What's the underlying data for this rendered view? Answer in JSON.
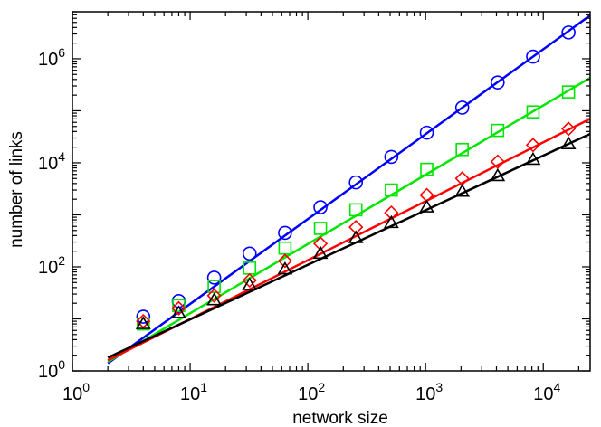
{
  "chart_data": {
    "type": "scatter",
    "title": "",
    "xlabel": "network size",
    "ylabel": "number of links",
    "xscale": "log",
    "yscale": "log",
    "xlim": [
      1,
      25000
    ],
    "ylim": [
      1,
      8000000
    ],
    "grid": false,
    "legend": "none",
    "x_ticks": [
      {
        "base": "10",
        "exp": "0",
        "value": 1
      },
      {
        "base": "10",
        "exp": "1",
        "value": 10
      },
      {
        "base": "10",
        "exp": "2",
        "value": 100
      },
      {
        "base": "10",
        "exp": "3",
        "value": 1000
      },
      {
        "base": "10",
        "exp": "4",
        "value": 10000
      }
    ],
    "y_ticks": [
      {
        "base": "10",
        "exp": "0",
        "value": 1
      },
      {
        "base": "10",
        "exp": "2",
        "value": 100
      },
      {
        "base": "10",
        "exp": "4",
        "value": 10000
      },
      {
        "base": "10",
        "exp": "6",
        "value": 1000000
      }
    ],
    "series": [
      {
        "marker": "circle",
        "color": "#0000ff",
        "points": [
          [
            4,
            11
          ],
          [
            8,
            22
          ],
          [
            16,
            62
          ],
          [
            32,
            180
          ],
          [
            64,
            450
          ],
          [
            128,
            1400
          ],
          [
            256,
            4200
          ],
          [
            512,
            13000
          ],
          [
            1024,
            38000
          ],
          [
            2048,
            115000
          ],
          [
            4096,
            350000
          ],
          [
            8192,
            1100000
          ],
          [
            16384,
            3200000
          ]
        ],
        "fit": [
          [
            2,
            1.4
          ],
          [
            25000,
            6800000
          ]
        ]
      },
      {
        "marker": "square",
        "color": "#00e600",
        "points": [
          [
            4,
            8
          ],
          [
            8,
            18
          ],
          [
            16,
            42
          ],
          [
            32,
            95
          ],
          [
            64,
            230
          ],
          [
            128,
            550
          ],
          [
            256,
            1250
          ],
          [
            512,
            3000
          ],
          [
            1024,
            7500
          ],
          [
            2048,
            18000
          ],
          [
            4096,
            42000
          ],
          [
            8192,
            95000
          ],
          [
            16384,
            230000
          ]
        ],
        "fit": [
          [
            2,
            1.5
          ],
          [
            25000,
            430000
          ]
        ]
      },
      {
        "marker": "diamond",
        "color": "#ff0000",
        "points": [
          [
            4,
            9
          ],
          [
            8,
            16
          ],
          [
            16,
            28
          ],
          [
            32,
            55
          ],
          [
            64,
            130
          ],
          [
            128,
            280
          ],
          [
            256,
            580
          ],
          [
            512,
            1100
          ],
          [
            1024,
            2400
          ],
          [
            2048,
            5000
          ],
          [
            4096,
            10500
          ],
          [
            8192,
            22000
          ],
          [
            16384,
            45000
          ]
        ],
        "fit": [
          [
            2,
            1.6
          ],
          [
            25000,
            70000
          ]
        ]
      },
      {
        "marker": "triangle",
        "color": "#000000",
        "points": [
          [
            4,
            8
          ],
          [
            8,
            13
          ],
          [
            16,
            23
          ],
          [
            32,
            45
          ],
          [
            64,
            90
          ],
          [
            128,
            180
          ],
          [
            256,
            360
          ],
          [
            512,
            700
          ],
          [
            1024,
            1400
          ],
          [
            2048,
            2800
          ],
          [
            4096,
            5600
          ],
          [
            8192,
            11500
          ],
          [
            16384,
            23000
          ]
        ],
        "fit": [
          [
            2,
            1.8
          ],
          [
            25000,
            36000
          ]
        ]
      }
    ]
  }
}
